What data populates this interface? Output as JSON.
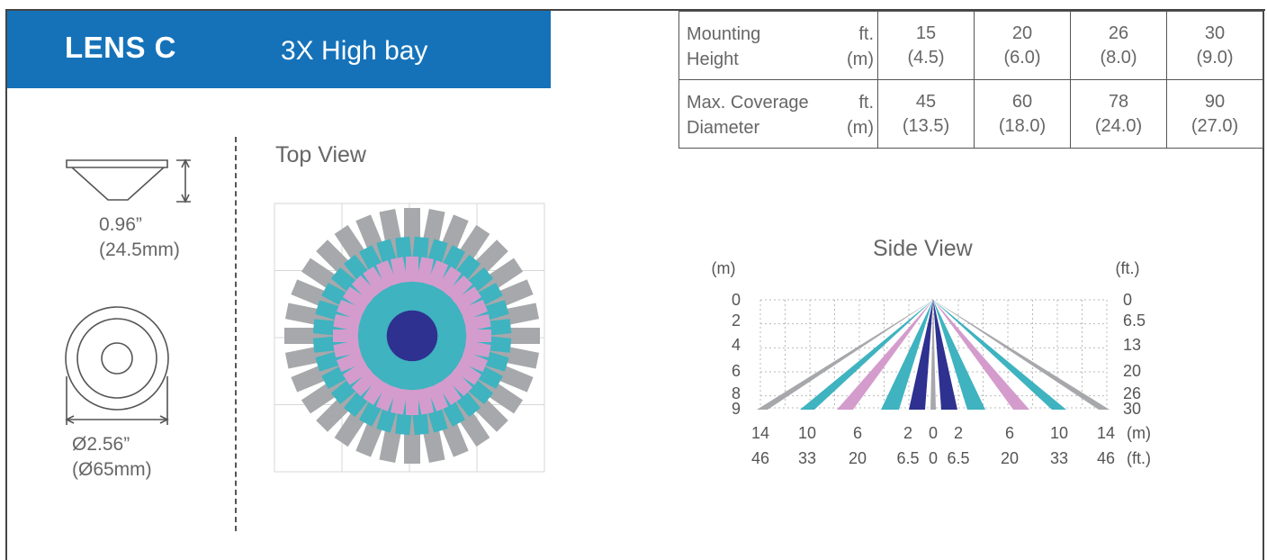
{
  "header": {
    "lens_label": "LENS C",
    "lens_type": "3X High bay"
  },
  "specs_table": {
    "rows": [
      {
        "label_line1": "Mounting",
        "label_line2": "Height",
        "unit_line1": "ft.",
        "unit_line2": "(m)",
        "values": [
          [
            "15",
            "(4.5)"
          ],
          [
            "20",
            "(6.0)"
          ],
          [
            "26",
            "(8.0)"
          ],
          [
            "30",
            "(9.0)"
          ]
        ]
      },
      {
        "label_line1": "Max. Coverage",
        "label_line2": "Diameter",
        "unit_line1": "ft.",
        "unit_line2": "(m)",
        "values": [
          [
            "45",
            "(13.5)"
          ],
          [
            "60",
            "(18.0)"
          ],
          [
            "78",
            "(24.0)"
          ],
          [
            "90",
            "(27.0)"
          ]
        ]
      }
    ]
  },
  "lens_dimensions": {
    "height_in": "0.96”",
    "height_mm": "(24.5mm)",
    "diameter_in": "Ø2.56”",
    "diameter_mm": "(Ø65mm)"
  },
  "top_view": {
    "title": "Top View"
  },
  "side_view": {
    "title": "Side View",
    "left_unit": "(m)",
    "right_unit": "(ft.)",
    "left_ticks": [
      "0",
      "2",
      "4",
      "6",
      "8",
      "9"
    ],
    "right_ticks": [
      "0",
      "6.5",
      "13",
      "20",
      "26",
      "30"
    ],
    "bottom_m": [
      "14",
      "10",
      "6",
      "2",
      "0",
      "2",
      "6",
      "10",
      "14"
    ],
    "bottom_ft": [
      "46",
      "33",
      "20",
      "6.5",
      "0",
      "6.5",
      "20",
      "33",
      "46"
    ],
    "bottom_m_unit": "(m)",
    "bottom_ft_unit": "(ft.)"
  },
  "colors": {
    "brand_blue": "#1572b9",
    "gray": "#a7a8ab",
    "teal": "#3fb3c0",
    "pink": "#d49ccc",
    "navy": "#2e3190"
  }
}
